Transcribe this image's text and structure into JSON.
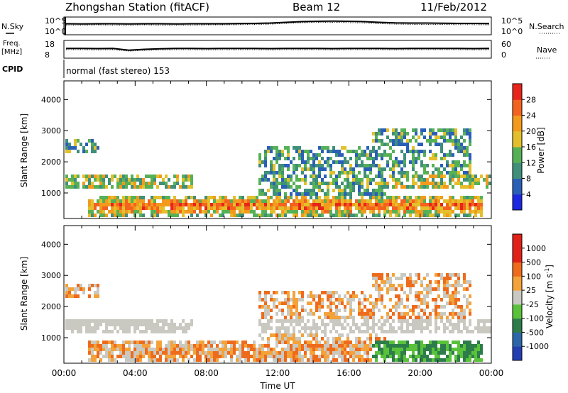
{
  "header": {
    "title": "Zhongshan Station (fitACF)",
    "beam": "Beam 12",
    "date": "11/Feb/2012"
  },
  "side_labels": {
    "nsky": "N.Sky",
    "nsearch": "N.Search",
    "freq": "Freq.",
    "freq_unit": "[MHz]",
    "nave": "Nave",
    "cpid": "CPID"
  },
  "cpid_text": "normal (fast stereo) 153",
  "chart_data": [
    {
      "type": "line",
      "name": "noise",
      "left_ticks": [
        "10^5",
        "10^0"
      ],
      "right_ticks": [
        "10^5",
        "10^0"
      ],
      "series": [
        {
          "values": [
            0.62,
            0.61,
            0.62,
            0.62,
            0.61,
            0.62,
            0.62,
            0.61,
            0.62,
            0.62,
            0.62,
            0.63,
            0.64,
            0.66,
            0.7,
            0.74,
            0.76,
            0.77,
            0.76,
            0.74,
            0.7,
            0.67,
            0.66,
            0.66,
            0.65,
            0.64,
            0.64,
            0.63
          ]
        },
        {
          "values": [
            0.55,
            0.55,
            0.56,
            0.55,
            0.55,
            0.56,
            0.55,
            0.55,
            0.55,
            0.56,
            0.56,
            0.57,
            0.58,
            0.6,
            0.64,
            0.68,
            0.7,
            0.7,
            0.69,
            0.67,
            0.63,
            0.6,
            0.59,
            0.58,
            0.58,
            0.57,
            0.57,
            0.56
          ]
        }
      ]
    },
    {
      "type": "line",
      "name": "frequency",
      "left_ticks": [
        "18",
        "8"
      ],
      "right_ticks": [
        "60",
        "0"
      ],
      "series": [
        {
          "values": [
            0.55,
            0.55,
            0.54,
            0.55,
            0.45,
            0.5,
            0.53,
            0.55,
            0.55,
            0.54,
            0.55,
            0.55,
            0.55,
            0.54,
            0.55,
            0.55,
            0.55,
            0.54,
            0.55,
            0.55,
            0.55,
            0.54,
            0.55,
            0.55,
            0.55,
            0.55,
            0.54,
            0.55
          ]
        },
        {
          "values": [
            0.48,
            0.48,
            0.47,
            0.48,
            0.4,
            0.44,
            0.47,
            0.48,
            0.48,
            0.47,
            0.48,
            0.48,
            0.48,
            0.47,
            0.48,
            0.48,
            0.48,
            0.47,
            0.48,
            0.48,
            0.48,
            0.47,
            0.48,
            0.48,
            0.48,
            0.48,
            0.47,
            0.48
          ]
        }
      ]
    },
    {
      "type": "heatmap",
      "name": "power",
      "ylabel": "Slant Range [km]",
      "ylim": [
        180,
        4600
      ],
      "yticks": [
        "1000",
        "2000",
        "3000",
        "4000"
      ],
      "colorbar_label": "Power [dB]",
      "colorbar_ticks": [
        "4",
        "8",
        "12",
        "16",
        "20",
        "24",
        "28"
      ],
      "colorbar_colors": [
        "#1b27e0",
        "#2a5fb8",
        "#3f8f7a",
        "#56b156",
        "#e3c02b",
        "#f39a1c",
        "#f4621f",
        "#e8251b"
      ]
    },
    {
      "type": "heatmap",
      "name": "velocity",
      "ylabel": "Slant Range [km]",
      "xlabel": "Time UT",
      "ylim": [
        180,
        4600
      ],
      "yticks": [
        "1000",
        "2000",
        "3000",
        "4000"
      ],
      "xticks": [
        "00:00",
        "04:00",
        "08:00",
        "12:00",
        "16:00",
        "20:00",
        "00:00"
      ],
      "colorbar_label": "Velocity [m s",
      "colorbar_label_sup": "-1",
      "colorbar_label_end": "]",
      "colorbar_ticks": [
        "1000",
        "500",
        "100",
        "25",
        "-25",
        "-100",
        "-500",
        "-1000"
      ],
      "colorbar_colors": [
        "#233eb2",
        "#2b66aa",
        "#2d7d4a",
        "#59c23a",
        "#c9c9c1",
        "#f4a23a",
        "#ef6b1c",
        "#e12018",
        "#e12018"
      ]
    }
  ]
}
